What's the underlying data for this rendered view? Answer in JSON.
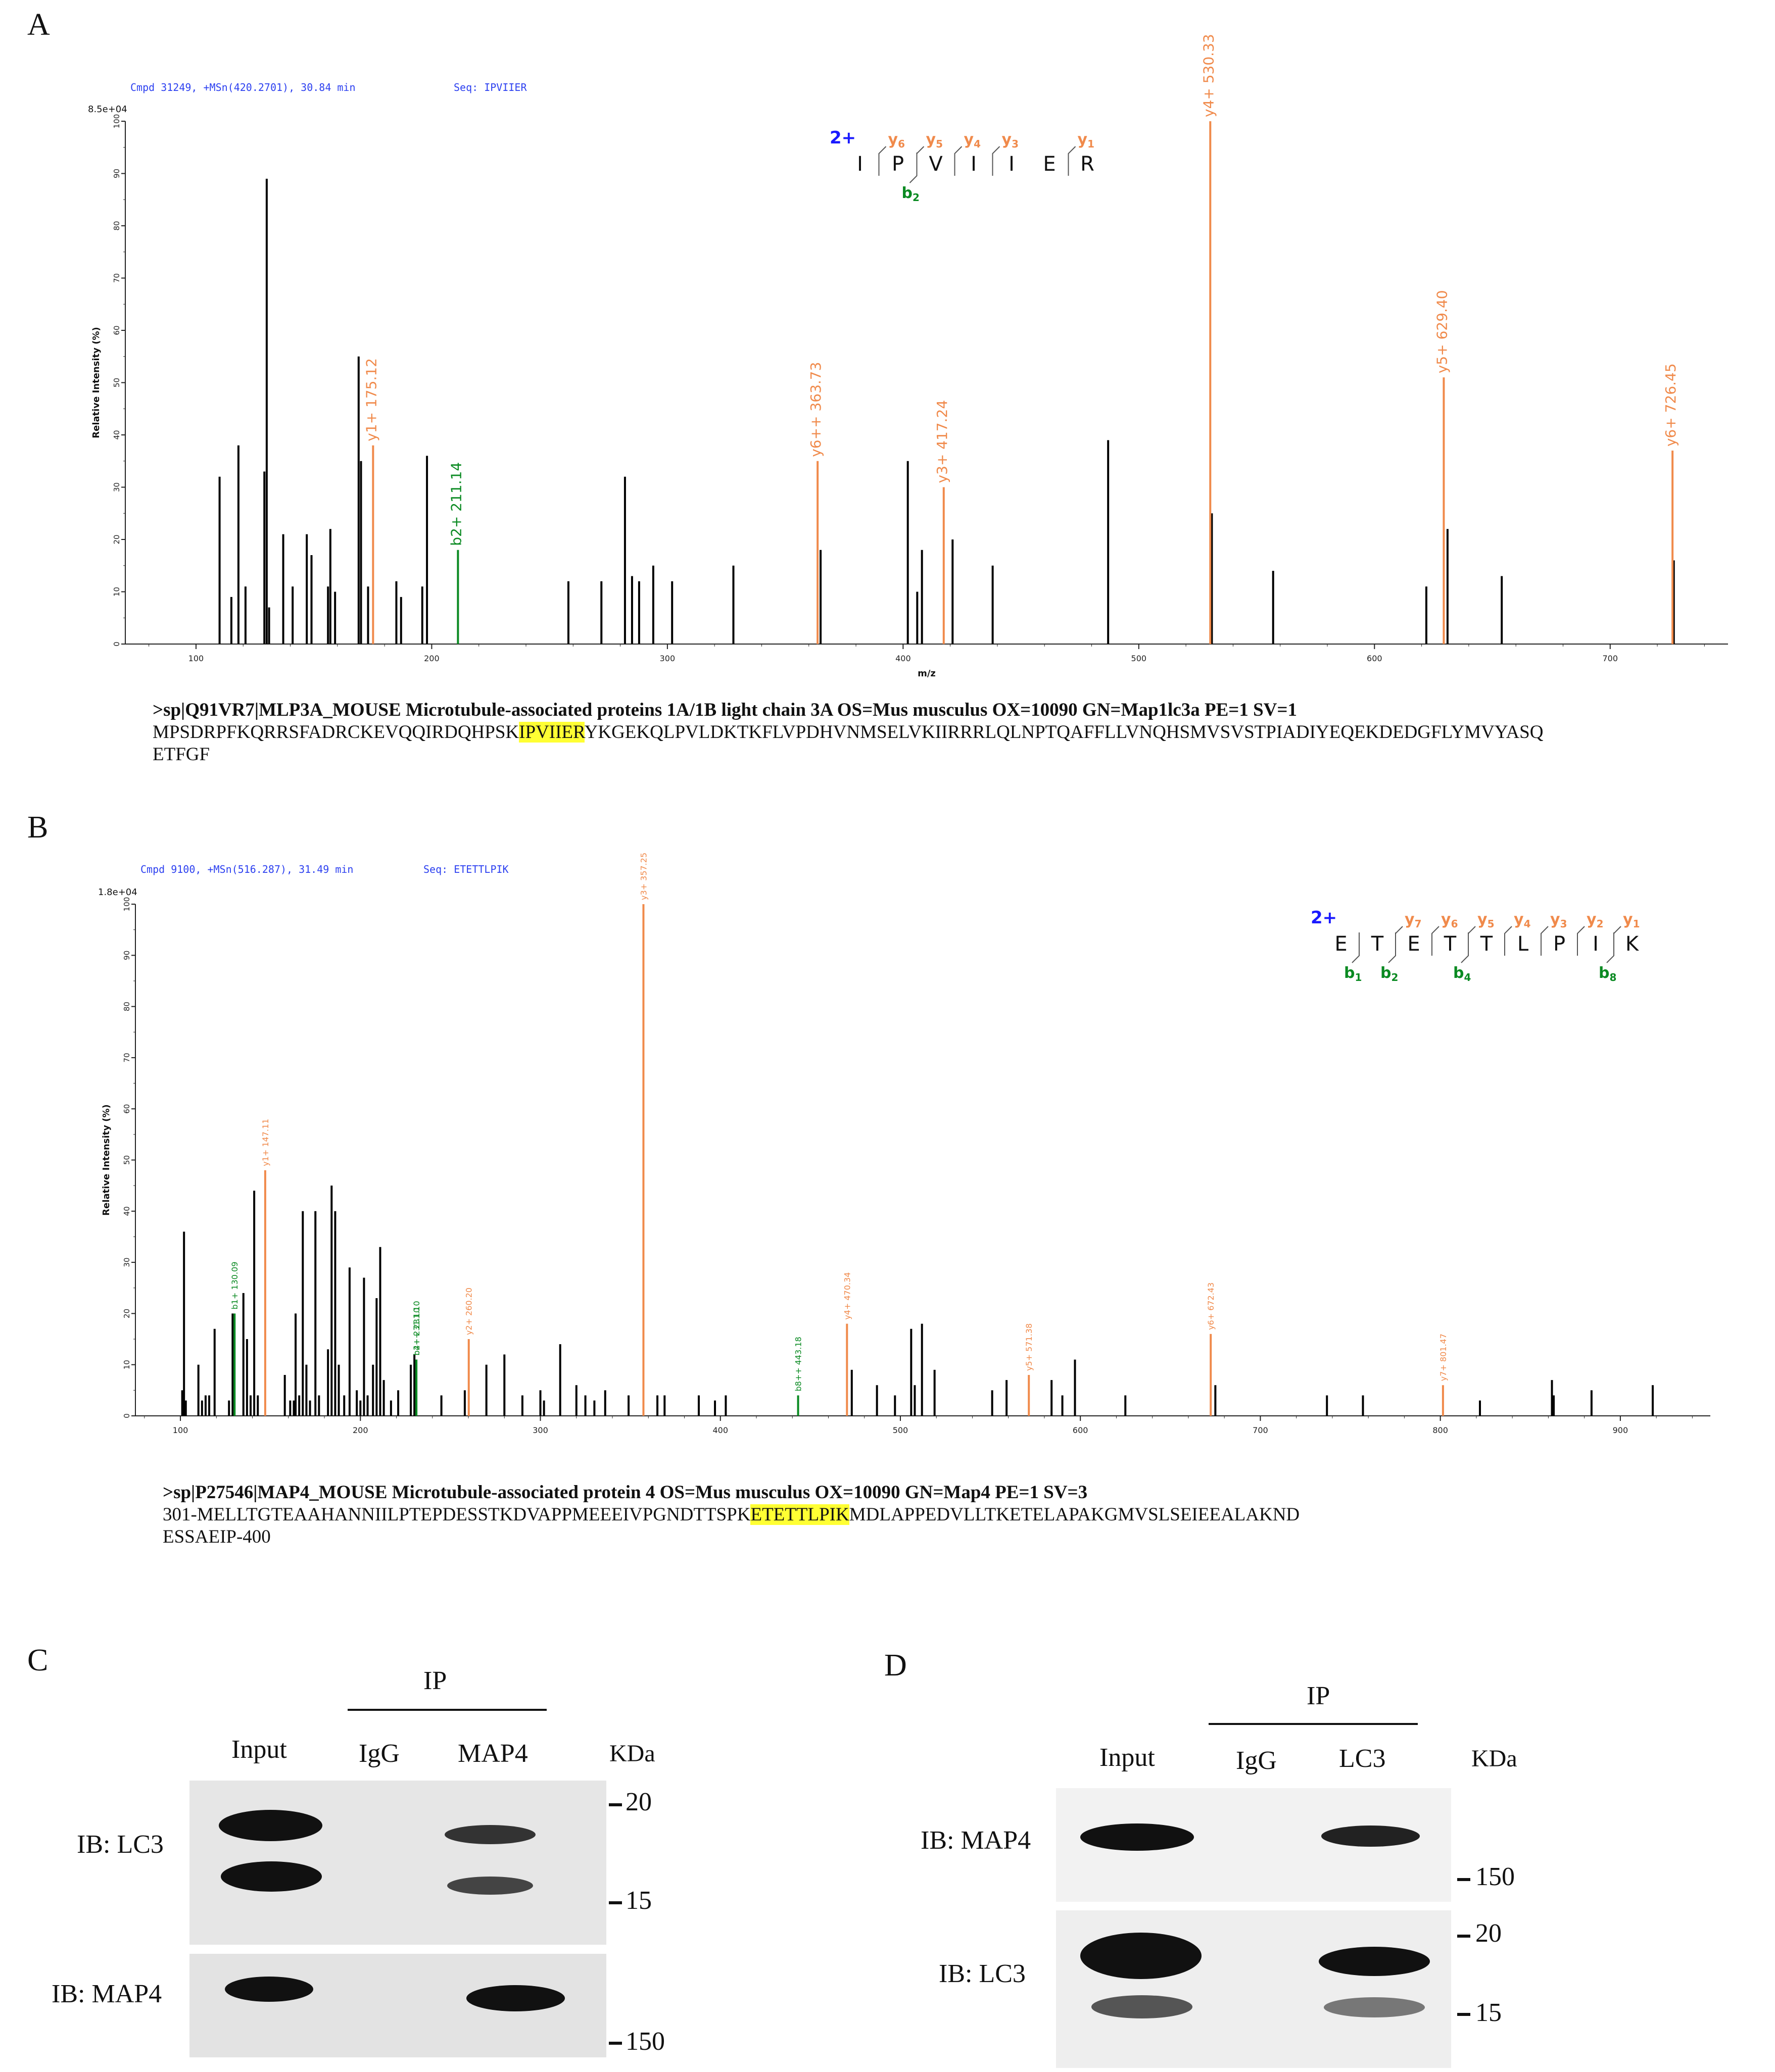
{
  "panels": {
    "a": "A",
    "b": "B",
    "c": "C",
    "d": "D"
  },
  "chart_data": [
    {
      "type": "bar",
      "id": "A",
      "header": "Cmpd 31249, +MSn(420.2701), 30.84 min",
      "seq_label": "Seq:",
      "seq": "IPVIIER",
      "scale": "8.5e+04",
      "xlabel": "m/z",
      "ylabel": "Relative   Intensity (%)",
      "xlim": [
        70,
        750
      ],
      "ylim": [
        0,
        100
      ],
      "xticks": [
        100,
        200,
        300,
        400,
        500,
        600,
        700
      ],
      "yticks": [
        0,
        10,
        20,
        30,
        40,
        50,
        60,
        70,
        80,
        90,
        100
      ],
      "series": [
        {
          "name": "unassigned",
          "color": "#000000",
          "points": [
            [
              110,
              32
            ],
            [
              115,
              9
            ],
            [
              118,
              38
            ],
            [
              121,
              11
            ],
            [
              129,
              33
            ],
            [
              130,
              89
            ],
            [
              131,
              7
            ],
            [
              137,
              21
            ],
            [
              141,
              11
            ],
            [
              147,
              21
            ],
            [
              149,
              17
            ],
            [
              156,
              11
            ],
            [
              157,
              22
            ],
            [
              159,
              10
            ],
            [
              169,
              55
            ],
            [
              170,
              35
            ],
            [
              173,
              11
            ],
            [
              185,
              12
            ],
            [
              187,
              9
            ],
            [
              196,
              11
            ],
            [
              198,
              36
            ],
            [
              258,
              12
            ],
            [
              272,
              12
            ],
            [
              285,
              13
            ],
            [
              288,
              12
            ],
            [
              294,
              15
            ],
            [
              282,
              32
            ],
            [
              302,
              12
            ],
            [
              328,
              15
            ],
            [
              365,
              18
            ],
            [
              402,
              35
            ],
            [
              406,
              10
            ],
            [
              408,
              18
            ],
            [
              421,
              20
            ],
            [
              438,
              15
            ],
            [
              487,
              39
            ],
            [
              531,
              25
            ],
            [
              557,
              14
            ],
            [
              622,
              11
            ],
            [
              631,
              22
            ],
            [
              654,
              13
            ],
            [
              727,
              16
            ]
          ]
        },
        {
          "name": "y ions",
          "color": "#f08a4b",
          "points": [
            [
              175.12,
              38,
              "y1+ 175.12"
            ],
            [
              363.73,
              35,
              "y6++ 363.73"
            ],
            [
              417.24,
              30,
              "y3+ 417.24"
            ],
            [
              530.33,
              100,
              "y4+ 530.33"
            ],
            [
              629.4,
              51,
              "y5+ 629.40"
            ],
            [
              726.45,
              37,
              "y6+ 726.45"
            ]
          ]
        },
        {
          "name": "b ions",
          "color": "#0a8a22",
          "points": [
            [
              211.14,
              18,
              "b2+ 211.14"
            ]
          ]
        }
      ],
      "frag": {
        "charge": "2+",
        "residues": [
          "I",
          "P",
          "V",
          "I",
          "I",
          "E",
          "R"
        ],
        "y": [
          {
            "label": "y",
            "sub": "6",
            "after": 1
          },
          {
            "label": "y",
            "sub": "5",
            "after": 2
          },
          {
            "label": "y",
            "sub": "4",
            "after": 3
          },
          {
            "label": "y",
            "sub": "3",
            "after": 4
          },
          {
            "label": "y",
            "sub": "1",
            "after": 6
          }
        ],
        "b": [
          {
            "label": "b",
            "sub": "2",
            "after": 2
          }
        ]
      }
    },
    {
      "type": "bar",
      "id": "B",
      "header": "Cmpd 9100, +MSn(516.287), 31.49 min",
      "seq_label": "Seq:",
      "seq": "ETETTLPIK",
      "scale": "1.8e+04",
      "xlabel": "",
      "ylabel": "Relative   Intensity (%)",
      "xlim": [
        75,
        950
      ],
      "ylim": [
        0,
        100
      ],
      "xticks": [
        100,
        200,
        300,
        400,
        500,
        600,
        700,
        800,
        900
      ],
      "yticks": [
        0,
        10,
        20,
        30,
        40,
        50,
        60,
        70,
        80,
        90,
        100
      ],
      "series": [
        {
          "name": "unassigned",
          "color": "#000000",
          "points": [
            [
              101,
              5
            ],
            [
              102,
              36
            ],
            [
              103,
              3
            ],
            [
              110,
              10
            ],
            [
              112,
              3
            ],
            [
              114,
              4
            ],
            [
              116,
              4
            ],
            [
              119,
              17
            ],
            [
              127,
              3
            ],
            [
              129,
              20
            ],
            [
              135,
              24
            ],
            [
              137,
              15
            ],
            [
              139,
              4
            ],
            [
              141,
              44
            ],
            [
              143,
              4
            ],
            [
              158,
              8
            ],
            [
              161,
              3
            ],
            [
              163,
              3
            ],
            [
              164,
              20
            ],
            [
              166,
              4
            ],
            [
              168,
              40
            ],
            [
              170,
              10
            ],
            [
              172,
              3
            ],
            [
              175,
              40
            ],
            [
              177,
              4
            ],
            [
              182,
              13
            ],
            [
              184,
              45
            ],
            [
              186,
              40
            ],
            [
              188,
              10
            ],
            [
              191,
              4
            ],
            [
              194,
              29
            ],
            [
              198,
              5
            ],
            [
              200,
              3
            ],
            [
              202,
              27
            ],
            [
              204,
              4
            ],
            [
              207,
              10
            ],
            [
              209,
              23
            ],
            [
              211,
              33
            ],
            [
              213,
              7
            ],
            [
              217,
              3
            ],
            [
              221,
              5
            ],
            [
              228,
              10
            ],
            [
              230,
              12
            ],
            [
              245,
              4
            ],
            [
              258,
              5
            ],
            [
              270,
              10
            ],
            [
              280,
              12
            ],
            [
              290,
              4
            ],
            [
              300,
              5
            ],
            [
              302,
              3
            ],
            [
              311,
              14
            ],
            [
              320,
              6
            ],
            [
              325,
              4
            ],
            [
              330,
              3
            ],
            [
              336,
              5
            ],
            [
              349,
              4
            ],
            [
              365,
              4
            ],
            [
              369,
              4
            ],
            [
              388,
              4
            ],
            [
              397,
              3
            ],
            [
              403,
              4
            ],
            [
              473,
              9
            ],
            [
              487,
              6
            ],
            [
              497,
              4
            ],
            [
              506,
              17
            ],
            [
              508,
              6
            ],
            [
              512,
              18
            ],
            [
              519,
              9
            ],
            [
              551,
              5
            ],
            [
              559,
              7
            ],
            [
              584,
              7
            ],
            [
              590,
              4
            ],
            [
              597,
              11
            ],
            [
              625,
              4
            ],
            [
              675,
              6
            ],
            [
              737,
              4
            ],
            [
              757,
              4
            ],
            [
              822,
              3
            ],
            [
              862,
              7
            ],
            [
              863,
              4
            ],
            [
              884,
              5
            ],
            [
              918,
              6
            ]
          ]
        },
        {
          "name": "y ions",
          "color": "#f08a4b",
          "points": [
            [
              147.11,
              48,
              "y1+ 147.11"
            ],
            [
              260.2,
              15,
              "y2+ 260.20"
            ],
            [
              357.25,
              100,
              "y3+ 357.25"
            ],
            [
              470.34,
              18,
              "y4+ 470.34"
            ],
            [
              571.38,
              8,
              "y5+ 571.38"
            ],
            [
              672.43,
              16,
              "y6+ 672.43"
            ],
            [
              801.47,
              6,
              "y7+ 801.47"
            ]
          ]
        },
        {
          "name": "b ions",
          "color": "#0a8a22",
          "points": [
            [
              130.09,
              20,
              "b1+ 130.09"
            ],
            [
              231.1,
              11,
              "b2+ 231.10"
            ],
            [
              231.1,
              11,
              "b4++ 231.10"
            ],
            [
              443.18,
              4,
              "b8++ 443.18"
            ]
          ]
        }
      ],
      "frag": {
        "charge": "2+",
        "residues": [
          "E",
          "T",
          "E",
          "T",
          "T",
          "L",
          "P",
          "I",
          "K"
        ],
        "y": [
          {
            "label": "y",
            "sub": "7",
            "after": 2
          },
          {
            "label": "y",
            "sub": "6",
            "after": 3
          },
          {
            "label": "y",
            "sub": "5",
            "after": 4
          },
          {
            "label": "y",
            "sub": "4",
            "after": 5
          },
          {
            "label": "y",
            "sub": "3",
            "after": 6
          },
          {
            "label": "y",
            "sub": "2",
            "after": 7
          },
          {
            "label": "y",
            "sub": "1",
            "after": 8
          }
        ],
        "b": [
          {
            "label": "b",
            "sub": "1",
            "after": 1
          },
          {
            "label": "b",
            "sub": "2",
            "after": 2
          },
          {
            "label": "b",
            "sub": "4",
            "after": 4
          },
          {
            "label": "b",
            "sub": "8",
            "after": 8
          }
        ]
      }
    }
  ],
  "seqA": {
    "header": ">sp|Q91VR7|MLP3A_MOUSE Microtubule-associated  proteins 1A/1B light chain 3A OS=Mus musculus OX=10090 GN=Map1lc3a PE=1 SV=1",
    "pre": "MPSDRPFKQRRSFADRCKEVQQIRDQHPSK",
    "hl": "IPVIIER",
    "post": "YKGEKQLPVLDKTKFLVPDHVNMSELVKIIRRRLQLNPTQAFFLLVNQHSMVSVSTPIADIYEQEKDEDGFLYMVYASQ",
    "line2": "ETFGF"
  },
  "seqB": {
    "header": ">sp|P27546|MAP4_MOUSE Microtubule-associated  protein 4 OS=Mus musculus OX=10090 GN=Map4 PE=1 SV=3",
    "pre": "301-MELLTGTEAAHANNIILPTEPDESSTKDVAPPMEEEIVPGNDTTSPK",
    "hl": "ETETTLPIK",
    "post": "MDLAPPEDVLLTKETELAPAKGMVSLSEIEEALAKND",
    "line2": "ESSAEIP-400"
  },
  "blotC": {
    "ip": "IP",
    "lanes": [
      "Input",
      "IgG",
      "MAP4"
    ],
    "kda": "KDa",
    "ib_top": "IB: LC3",
    "ib_bottom": "IB: MAP4",
    "m20": "20",
    "m15": "15",
    "m150": "150"
  },
  "blotD": {
    "ip": "IP",
    "lanes": [
      "Input",
      "IgG",
      "LC3"
    ],
    "kda": "KDa",
    "ib_top": "IB: MAP4",
    "ib_bottom": "IB: LC3",
    "m150": "150",
    "m20": "20",
    "m15": "15"
  }
}
